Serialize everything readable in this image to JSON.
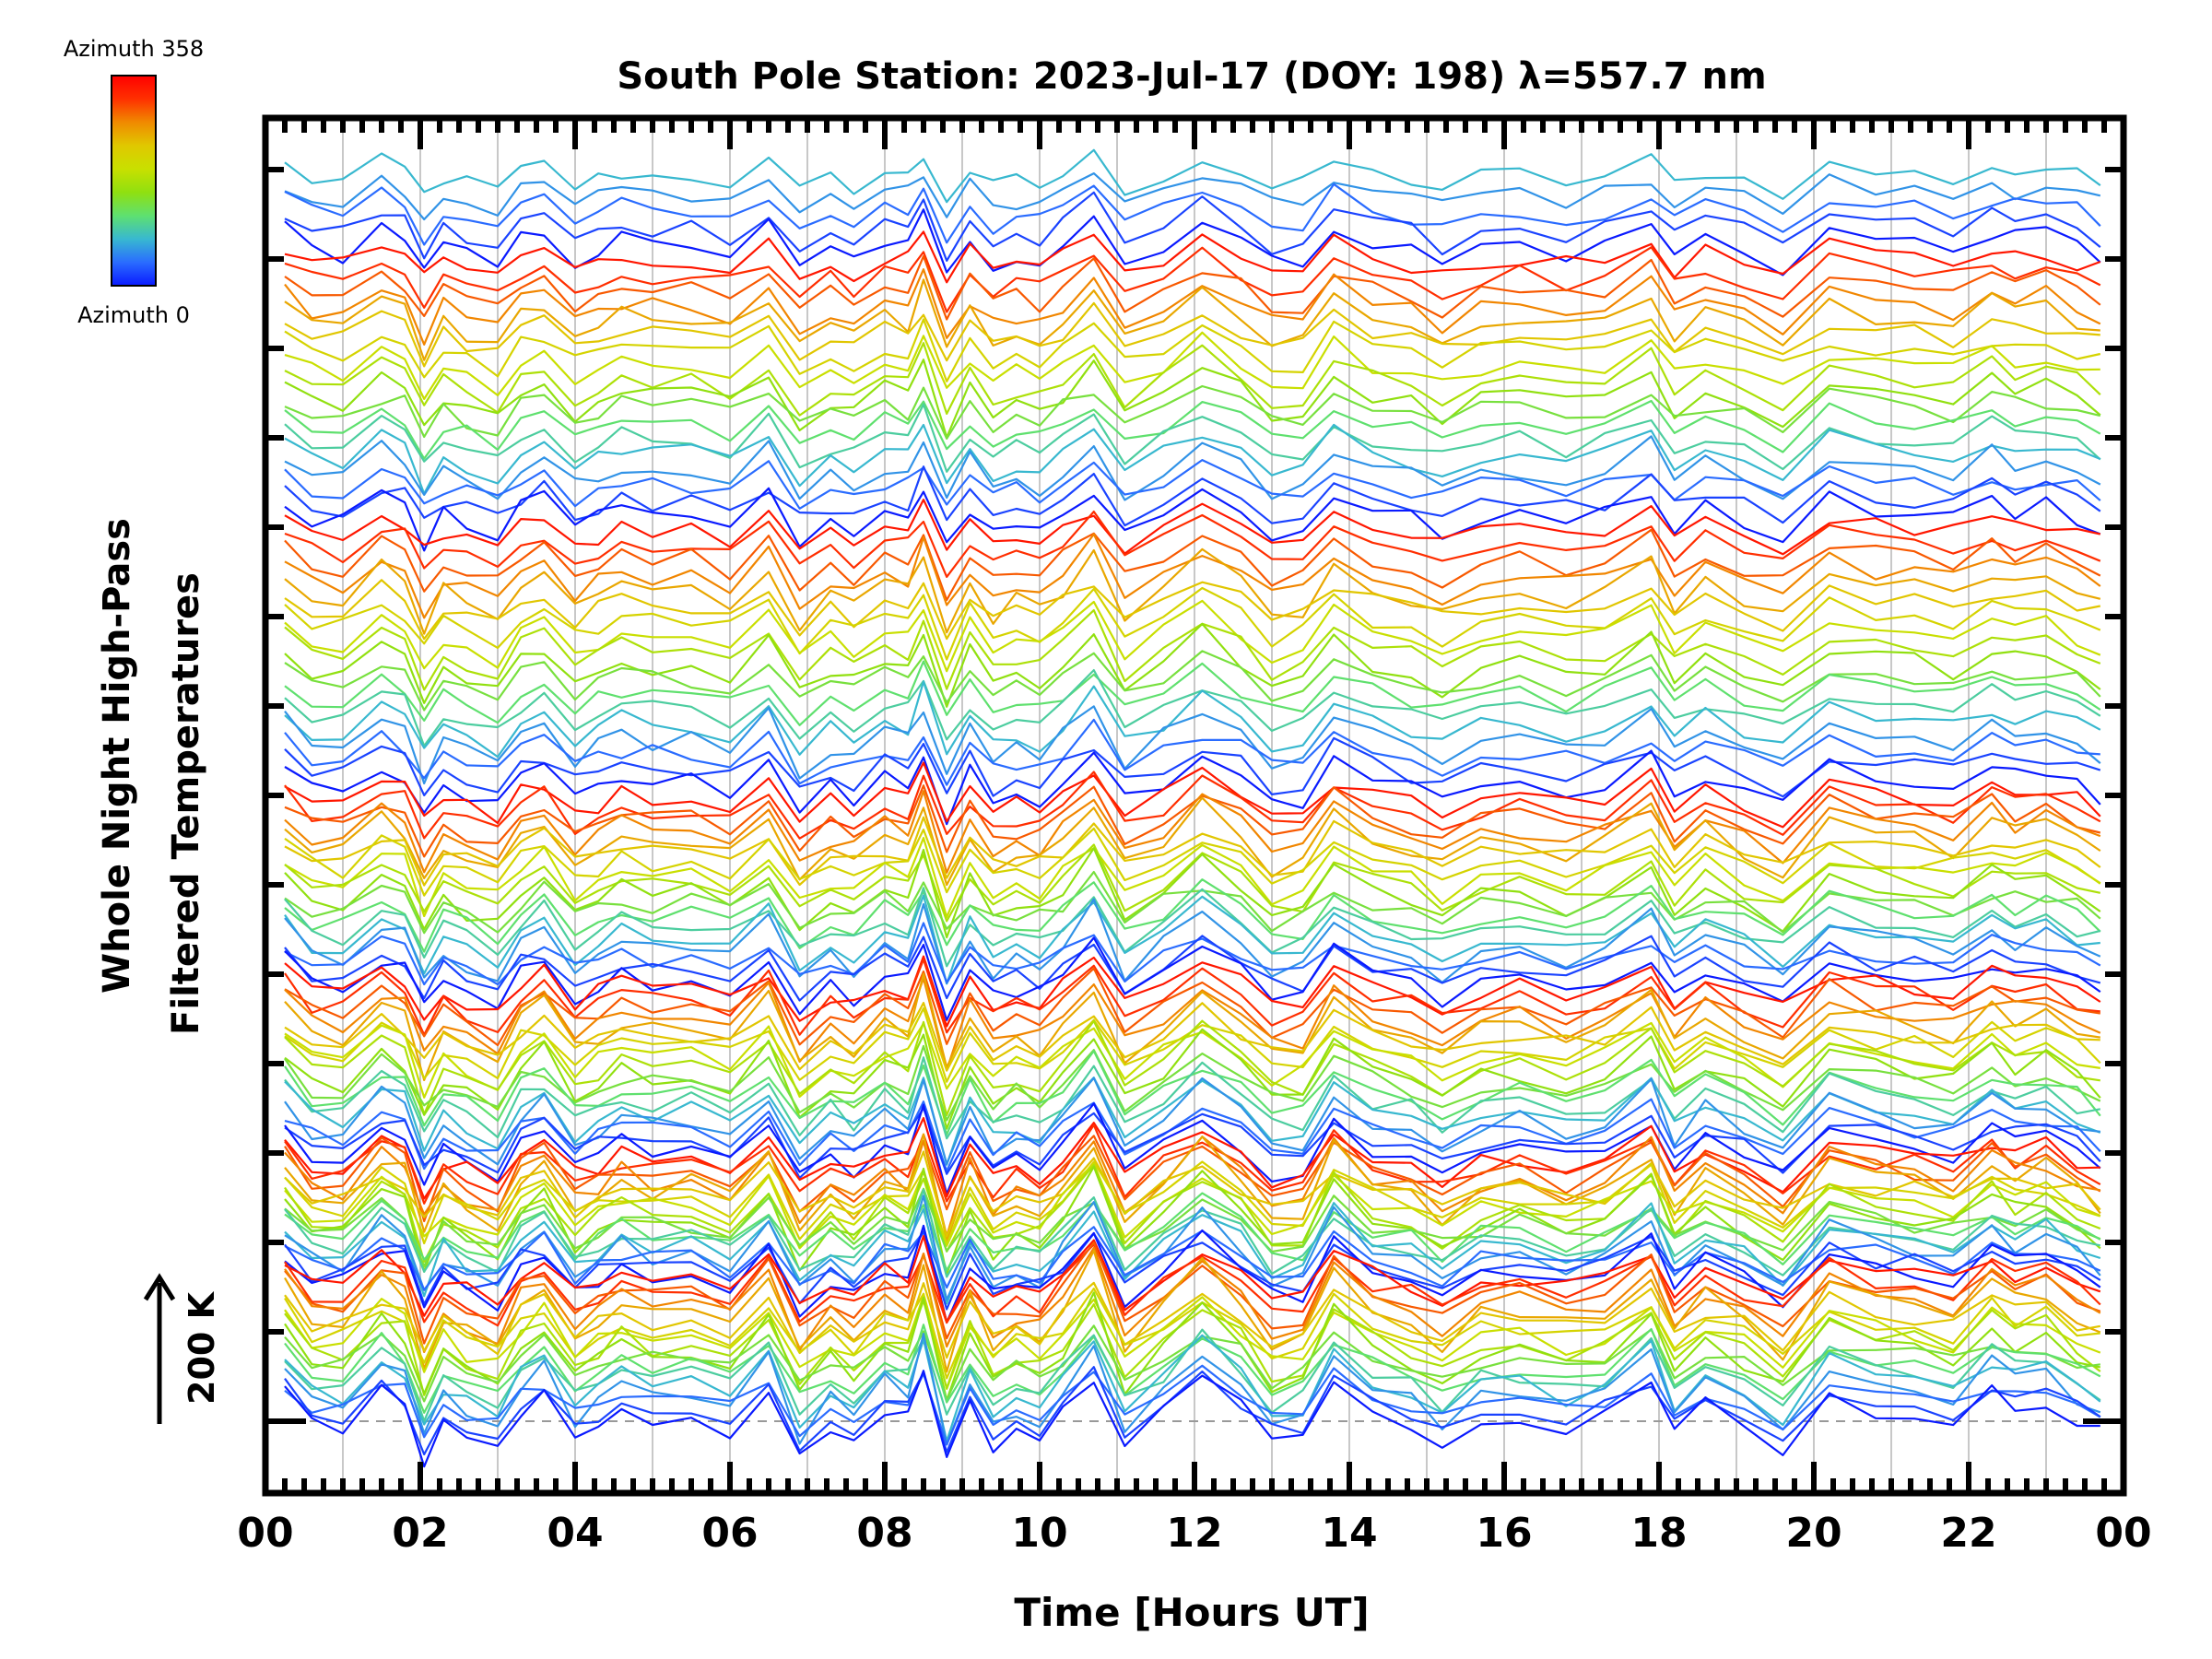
{
  "chart_data": {
    "type": "line",
    "title": "South Pole Station: 2023-Jul-17 (DOY: 198) λ=557.7 nm",
    "xlabel": "Time [Hours UT]",
    "ylabel_lines": [
      "Whole Night High-Pass",
      "Filtered Temperatures"
    ],
    "scale_bar_label": "200 K",
    "scale_bar_K": 200,
    "xlim": [
      0,
      24
    ],
    "x_tick_labels": [
      "00",
      "02",
      "04",
      "06",
      "08",
      "10",
      "12",
      "14",
      "16",
      "18",
      "20",
      "22",
      "00"
    ],
    "grid": "vertical every hour",
    "legend": {
      "type": "colorbar",
      "placement": "top-left",
      "max_label": "Azimuth 358",
      "min_label": "Azimuth 0",
      "azimuth_range": [
        0,
        358
      ],
      "color_stops": [
        "#0a1aff",
        "#2a6cff",
        "#38b8d0",
        "#5ee070",
        "#90e010",
        "#c8e000",
        "#e0c800",
        "#f08a00",
        "#ff3000",
        "#ff0000"
      ]
    },
    "baseline_K": 0,
    "x": [
      0.25,
      0.6,
      1.0,
      1.5,
      1.8,
      2.05,
      2.3,
      2.6,
      3.0,
      3.3,
      3.6,
      4.0,
      4.3,
      4.6,
      5.0,
      5.5,
      6.0,
      6.5,
      6.9,
      7.3,
      7.6,
      8.0,
      8.3,
      8.5,
      8.8,
      9.1,
      9.4,
      9.7,
      10.0,
      10.3,
      10.7,
      11.1,
      11.6,
      12.1,
      12.6,
      13.0,
      13.4,
      13.8,
      14.3,
      14.8,
      15.2,
      15.7,
      16.2,
      16.8,
      17.3,
      17.9,
      18.2,
      18.6,
      19.1,
      19.6,
      20.2,
      20.8,
      21.3,
      21.8,
      22.3,
      22.6,
      23.0,
      23.4,
      23.7
    ],
    "common_anomaly_K": [
      20,
      -10,
      -15,
      25,
      10,
      -45,
      -5,
      -20,
      -35,
      5,
      20,
      -25,
      -10,
      5,
      -5,
      0,
      -15,
      25,
      -40,
      -10,
      -25,
      5,
      -5,
      40,
      -50,
      10,
      -30,
      -15,
      -25,
      0,
      40,
      -30,
      0,
      35,
      5,
      -30,
      -25,
      30,
      0,
      -10,
      -30,
      -5,
      0,
      -15,
      -5,
      30,
      -20,
      10,
      -10,
      -35,
      20,
      5,
      0,
      -10,
      20,
      5,
      15,
      -5,
      -20
    ],
    "series_groups": [
      {
        "offset_top_K": 1745,
        "spacing_K": 24,
        "azimuths": [
          80,
          60,
          40,
          20,
          0
        ]
      },
      {
        "offset_top_K": 1628,
        "spacing_K": 21,
        "azimuths": [
          340,
          320,
          300,
          280,
          260,
          240,
          220,
          200,
          180,
          160,
          140,
          120,
          100,
          80,
          60,
          40,
          20,
          0
        ]
      },
      {
        "offset_top_K": 1249,
        "spacing_K": 20.8,
        "azimuths": [
          340,
          320,
          300,
          280,
          260,
          240,
          220,
          200,
          180,
          160,
          140,
          120,
          100,
          80,
          60,
          40,
          20,
          0
        ]
      },
      {
        "offset_top_K": 874,
        "spacing_K": 14.8,
        "azimuths": [
          340,
          320,
          300,
          280,
          260,
          240,
          220,
          200,
          180,
          160,
          140,
          120,
          100,
          80,
          60,
          40,
          20,
          0
        ]
      },
      {
        "offset_top_K": 608,
        "spacing_K": 13.2,
        "azimuths": [
          340,
          320,
          300,
          280,
          260,
          240,
          220,
          200,
          180,
          160,
          140,
          120,
          100,
          80,
          60,
          40,
          20,
          0
        ]
      },
      {
        "offset_top_K": 370,
        "spacing_K": 9.3,
        "azimuths": [
          340,
          320,
          300,
          280,
          260,
          240,
          220,
          200,
          180,
          160,
          140,
          120,
          100,
          80,
          60,
          40,
          20,
          0
        ]
      },
      {
        "offset_top_K": 203,
        "spacing_K": 11.3,
        "azimuths": [
          340,
          320,
          300,
          280,
          260,
          240,
          220,
          200,
          180,
          160,
          140,
          120,
          100,
          80,
          60,
          40,
          20,
          0
        ]
      }
    ]
  }
}
